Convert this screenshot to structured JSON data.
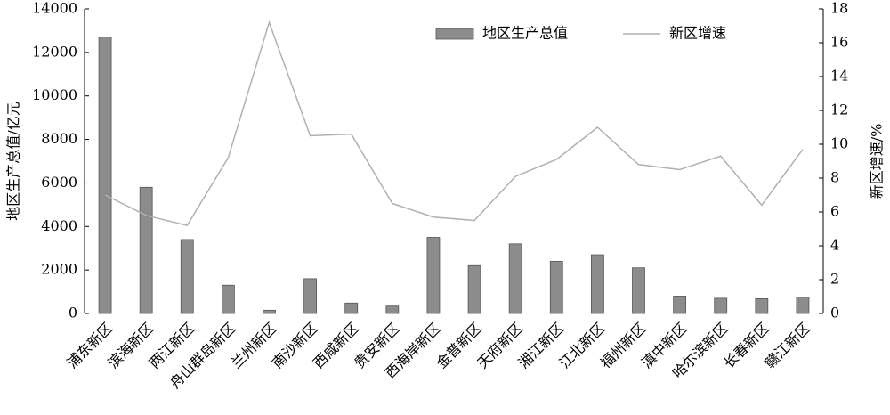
{
  "chart_data": {
    "type": "bar-line",
    "categories": [
      "浦东新区",
      "滨海新区",
      "两江新区",
      "舟山群岛新区",
      "兰州新区",
      "南沙新区",
      "西咸新区",
      "贵安新区",
      "西海岸新区",
      "金普新区",
      "天府新区",
      "湘江新区",
      "江北新区",
      "福州新区",
      "滇中新区",
      "哈尔滨新区",
      "长春新区",
      "赣江新区"
    ],
    "series": [
      {
        "name": "地区生产总值",
        "type": "bar",
        "color": "#8c8c8c",
        "values": [
          12700,
          5800,
          3400,
          1300,
          150,
          1600,
          480,
          340,
          3500,
          2200,
          3200,
          2400,
          2700,
          2100,
          800,
          700,
          680,
          750
        ]
      },
      {
        "name": "新区增速",
        "type": "line",
        "axis": "y2",
        "color": "#b0b0b0",
        "values": [
          7.0,
          5.8,
          5.2,
          9.2,
          17.2,
          10.5,
          10.6,
          6.5,
          5.7,
          5.5,
          8.1,
          9.1,
          11.0,
          8.8,
          8.5,
          9.3,
          6.4,
          9.7
        ]
      }
    ],
    "ylabel": "地区生产总值/亿元",
    "y2label": "新区增速/%",
    "ylim": [
      0,
      14000
    ],
    "yticks": [
      0,
      2000,
      4000,
      6000,
      8000,
      10000,
      12000,
      14000
    ],
    "y2lim": [
      0,
      18
    ],
    "y2ticks": [
      0,
      2,
      4,
      6,
      8,
      10,
      12,
      14,
      16,
      18
    ],
    "legend": "upper center"
  }
}
